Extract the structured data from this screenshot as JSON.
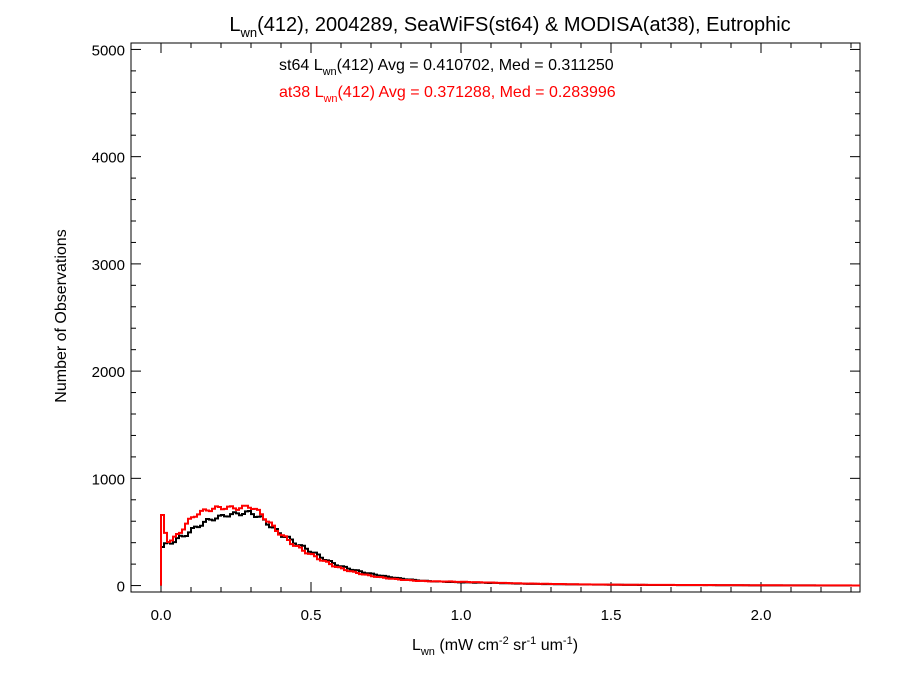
{
  "chart_data": {
    "type": "line",
    "title": {
      "main": "L",
      "sub": "wn",
      "rest": "(412), 2004289, SeaWiFS(st64) & MODISA(at38), Eutrophic"
    },
    "xlabel": {
      "main": "L",
      "sub": "wn",
      "rest": " (mW cm",
      "sup1": "-2",
      "mid": " sr",
      "sup2": "-1",
      "end": " um",
      "sup3": "-1",
      "close": ")"
    },
    "ylabel": "Number of Observations",
    "xlim": [
      -0.1,
      2.33
    ],
    "ylim": [
      -60,
      5060
    ],
    "x_ticks": [
      0.0,
      0.5,
      1.0,
      1.5,
      2.0
    ],
    "x_tick_labels": [
      "0.0",
      "0.5",
      "1.0",
      "1.5",
      "2.0"
    ],
    "y_ticks": [
      0,
      1000,
      2000,
      3000,
      4000,
      5000
    ],
    "y_tick_labels": [
      "0",
      "1000",
      "2000",
      "3000",
      "4000",
      "5000"
    ],
    "grid": false,
    "legend_position": "top-center",
    "annotations": [
      {
        "pre": "st64 L",
        "sub": "wn",
        "post": "(412) Avg = 0.410702, Med = 0.311250",
        "color": "#000000"
      },
      {
        "pre": "at38 L",
        "sub": "wn",
        "post": "(412) Avg = 0.371288, Med = 0.283996",
        "color": "#ff0000"
      }
    ],
    "series": [
      {
        "color": "#000000",
        "points": [
          [
            0.0,
            0
          ],
          [
            0.0,
            350
          ],
          [
            0.02,
            390
          ],
          [
            0.04,
            410
          ],
          [
            0.06,
            440
          ],
          [
            0.08,
            470
          ],
          [
            0.1,
            510
          ],
          [
            0.12,
            550
          ],
          [
            0.14,
            580
          ],
          [
            0.16,
            610
          ],
          [
            0.18,
            630
          ],
          [
            0.2,
            640
          ],
          [
            0.22,
            660
          ],
          [
            0.24,
            665
          ],
          [
            0.26,
            670
          ],
          [
            0.28,
            680
          ],
          [
            0.3,
            680
          ],
          [
            0.32,
            650
          ],
          [
            0.34,
            620
          ],
          [
            0.36,
            570
          ],
          [
            0.38,
            520
          ],
          [
            0.4,
            480
          ],
          [
            0.42,
            450
          ],
          [
            0.44,
            410
          ],
          [
            0.46,
            380
          ],
          [
            0.48,
            350
          ],
          [
            0.5,
            320
          ],
          [
            0.52,
            290
          ],
          [
            0.55,
            240
          ],
          [
            0.58,
            200
          ],
          [
            0.6,
            180
          ],
          [
            0.65,
            140
          ],
          [
            0.7,
            110
          ],
          [
            0.75,
            85
          ],
          [
            0.8,
            65
          ],
          [
            0.85,
            50
          ],
          [
            0.9,
            40
          ],
          [
            0.95,
            35
          ],
          [
            1.0,
            30
          ],
          [
            1.1,
            25
          ],
          [
            1.2,
            18
          ],
          [
            1.3,
            13
          ],
          [
            1.4,
            10
          ],
          [
            1.5,
            8
          ],
          [
            1.6,
            6
          ],
          [
            1.7,
            5
          ],
          [
            1.8,
            4
          ],
          [
            1.9,
            3
          ],
          [
            2.0,
            2
          ],
          [
            2.1,
            2
          ],
          [
            2.2,
            1
          ],
          [
            2.33,
            1
          ]
        ]
      },
      {
        "color": "#ff0000",
        "points": [
          [
            0.0,
            0
          ],
          [
            0.0,
            720
          ],
          [
            0.01,
            560
          ],
          [
            0.02,
            420
          ],
          [
            0.04,
            430
          ],
          [
            0.06,
            480
          ],
          [
            0.08,
            560
          ],
          [
            0.1,
            620
          ],
          [
            0.12,
            670
          ],
          [
            0.14,
            690
          ],
          [
            0.16,
            710
          ],
          [
            0.18,
            720
          ],
          [
            0.2,
            725
          ],
          [
            0.22,
            730
          ],
          [
            0.24,
            720
          ],
          [
            0.26,
            725
          ],
          [
            0.28,
            730
          ],
          [
            0.3,
            740
          ],
          [
            0.32,
            700
          ],
          [
            0.34,
            650
          ],
          [
            0.36,
            590
          ],
          [
            0.38,
            530
          ],
          [
            0.4,
            480
          ],
          [
            0.42,
            430
          ],
          [
            0.44,
            390
          ],
          [
            0.46,
            350
          ],
          [
            0.48,
            320
          ],
          [
            0.5,
            290
          ],
          [
            0.52,
            260
          ],
          [
            0.55,
            220
          ],
          [
            0.58,
            180
          ],
          [
            0.6,
            160
          ],
          [
            0.65,
            120
          ],
          [
            0.7,
            90
          ],
          [
            0.75,
            70
          ],
          [
            0.8,
            55
          ],
          [
            0.85,
            45
          ],
          [
            0.9,
            40
          ],
          [
            0.95,
            38
          ],
          [
            1.0,
            35
          ],
          [
            1.1,
            28
          ],
          [
            1.2,
            20
          ],
          [
            1.3,
            15
          ],
          [
            1.4,
            11
          ],
          [
            1.5,
            9
          ],
          [
            1.6,
            7
          ],
          [
            1.7,
            6
          ],
          [
            1.8,
            5
          ],
          [
            1.9,
            4
          ],
          [
            2.0,
            3
          ],
          [
            2.1,
            2
          ],
          [
            2.2,
            2
          ],
          [
            2.33,
            1
          ]
        ]
      }
    ]
  }
}
